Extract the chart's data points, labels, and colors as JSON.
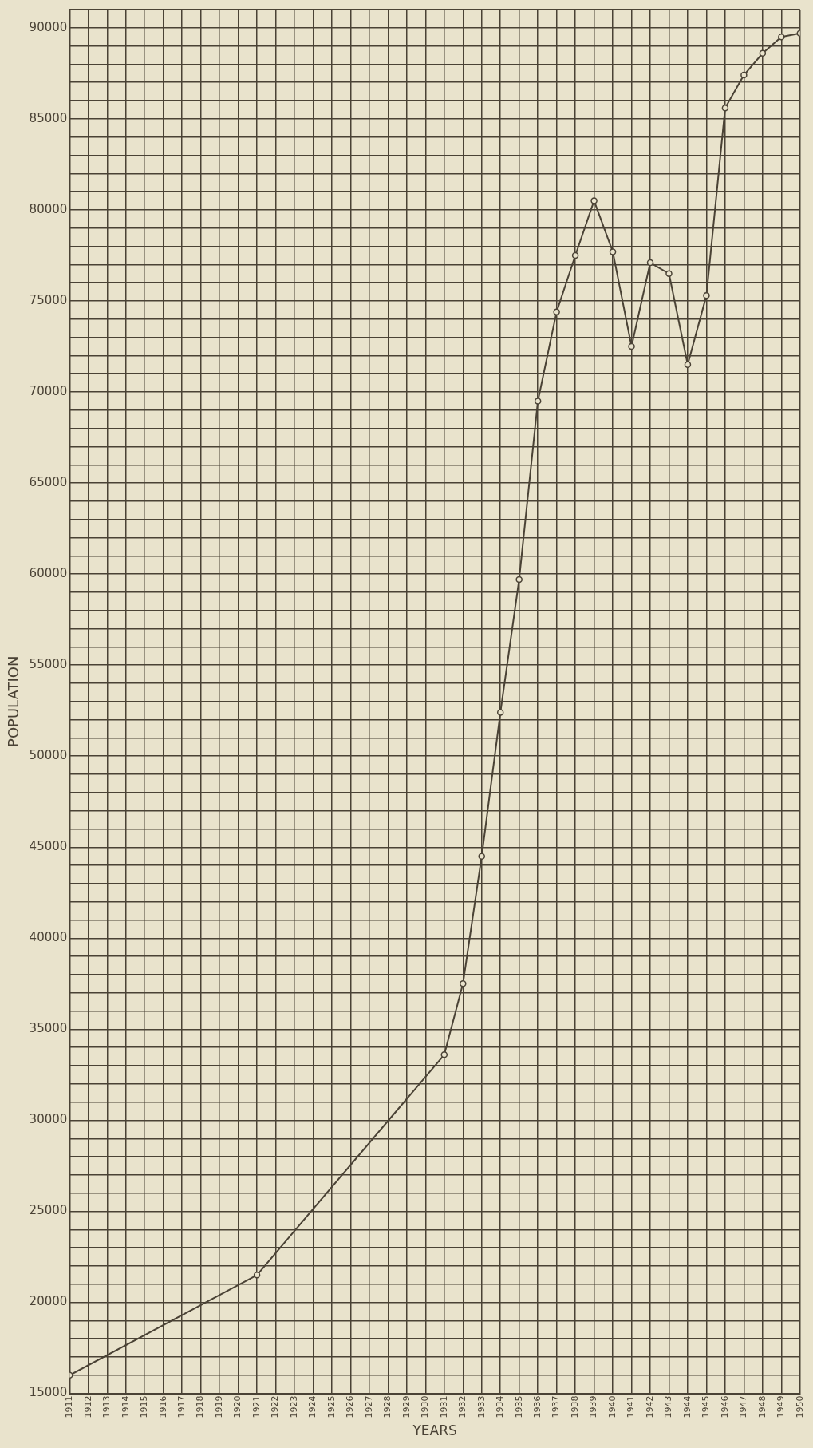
{
  "chart_data": {
    "type": "line",
    "xlabel": "YEARS",
    "ylabel": "POPULATION",
    "x": [
      1911,
      1921,
      1931,
      1932,
      1933,
      1934,
      1935,
      1936,
      1937,
      1938,
      1939,
      1940,
      1941,
      1942,
      1943,
      1944,
      1945,
      1946,
      1947,
      1948,
      1949,
      1950
    ],
    "series": [
      {
        "color": "#4a4235",
        "values": [
          16000,
          21500,
          33600,
          37500,
          44500,
          52400,
          59700,
          69500,
          74400,
          77500,
          80500,
          77700,
          72500,
          77100,
          76500,
          71500,
          75300,
          85600,
          87400,
          88600,
          89500,
          89700
        ]
      }
    ],
    "xlim": [
      1911,
      1950
    ],
    "xticks": [
      1911,
      1912,
      1913,
      1914,
      1915,
      1916,
      1917,
      1918,
      1919,
      1920,
      1921,
      1922,
      1923,
      1924,
      1925,
      1926,
      1927,
      1928,
      1929,
      1930,
      1931,
      1932,
      1933,
      1934,
      1935,
      1936,
      1937,
      1938,
      1939,
      1940,
      1941,
      1942,
      1943,
      1944,
      1945,
      1946,
      1947,
      1948,
      1949,
      1950
    ],
    "ylim": [
      15000,
      91000
    ],
    "yticks": [
      15000,
      {
        "value": 16000,
        "label": null
      },
      {
        "value": 17000,
        "label": null
      },
      {
        "value": 18000,
        "label": null
      },
      {
        "value": 19000,
        "label": null
      },
      20000,
      {
        "value": 21000,
        "label": null
      },
      {
        "value": 22000,
        "label": null
      },
      {
        "value": 23000,
        "label": null
      },
      {
        "value": 24000,
        "label": null
      },
      25000,
      {
        "value": 26000,
        "label": null
      },
      {
        "value": 27000,
        "label": null
      },
      {
        "value": 28000,
        "label": null
      },
      {
        "value": 29000,
        "label": null
      },
      30000,
      {
        "value": 31000,
        "label": null
      },
      {
        "value": 32000,
        "label": null
      },
      {
        "value": 33000,
        "label": null
      },
      {
        "value": 34000,
        "label": null
      },
      35000,
      {
        "value": 36000,
        "label": null
      },
      {
        "value": 37000,
        "label": null
      },
      {
        "value": 38000,
        "label": null
      },
      {
        "value": 39000,
        "label": null
      },
      40000,
      {
        "value": 41000,
        "label": null
      },
      {
        "value": 42000,
        "label": null
      },
      {
        "value": 43000,
        "label": null
      },
      {
        "value": 44000,
        "label": null
      },
      45000,
      {
        "value": 46000,
        "label": null
      },
      {
        "value": 47000,
        "label": null
      },
      {
        "value": 48000,
        "label": null
      },
      {
        "value": 49000,
        "label": null
      },
      50000,
      {
        "value": 51000,
        "label": null
      },
      {
        "value": 52000,
        "label": null
      },
      {
        "value": 53000,
        "label": null
      },
      {
        "value": 54000,
        "label": null
      },
      55000,
      {
        "value": 56000,
        "label": null
      },
      {
        "value": 57000,
        "label": null
      },
      {
        "value": 58000,
        "label": null
      },
      {
        "value": 59000,
        "label": null
      },
      60000,
      {
        "value": 61000,
        "label": null
      },
      {
        "value": 62000,
        "label": null
      },
      {
        "value": 63000,
        "label": null
      },
      {
        "value": 64000,
        "label": null
      },
      65000,
      {
        "value": 66000,
        "label": null
      },
      {
        "value": 67000,
        "label": null
      },
      {
        "value": 68000,
        "label": null
      },
      {
        "value": 69000,
        "label": null
      },
      70000,
      {
        "value": 71000,
        "label": null
      },
      {
        "value": 72000,
        "label": null
      },
      {
        "value": 73000,
        "label": null
      },
      {
        "value": 74000,
        "label": null
      },
      75000,
      {
        "value": 76000,
        "label": null
      },
      {
        "value": 77000,
        "label": null
      },
      {
        "value": 78000,
        "label": null
      },
      {
        "value": 79000,
        "label": null
      },
      80000,
      {
        "value": 81000,
        "label": null
      },
      {
        "value": 82000,
        "label": null
      },
      {
        "value": 83000,
        "label": null
      },
      {
        "value": 84000,
        "label": null
      },
      85000,
      {
        "value": 86000,
        "label": null
      },
      {
        "value": 87000,
        "label": null
      },
      {
        "value": 88000,
        "label": null
      },
      {
        "value": 89000,
        "label": null
      },
      90000,
      {
        "value": 91000,
        "label": null
      }
    ],
    "grid": true,
    "marker": "circle",
    "line_style": "solid",
    "legend": false
  }
}
